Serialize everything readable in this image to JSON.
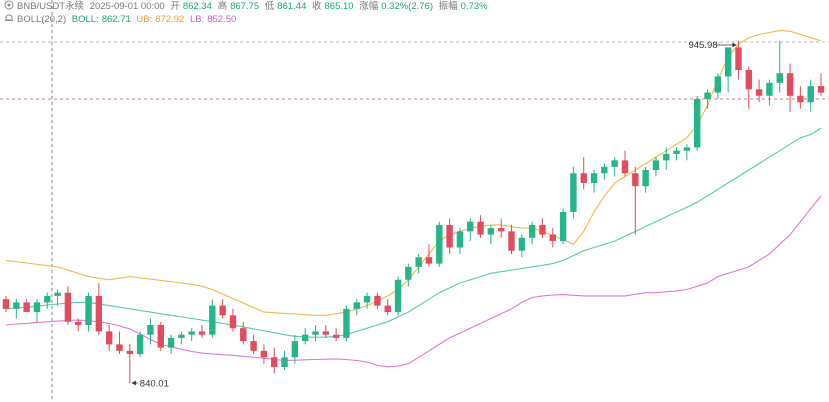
{
  "header": {
    "symbol": "BNB/USDT永续",
    "datetime": "2025-09-01 00:00",
    "open_label": "开",
    "open": "862.34",
    "high_label": "高",
    "high": "867.75",
    "low_label": "低",
    "low": "861.44",
    "close_label": "收",
    "close": "865.10",
    "change_label": "涨幅",
    "change": "0.32%(2.76)",
    "amp_label": "振幅",
    "amp": "0.73%"
  },
  "boll": {
    "label": "BOLL(20,2)",
    "mid_label": "BOLL:",
    "mid": "862.71",
    "ub_label": "UB:",
    "ub": "872.92",
    "lb_label": "LB:",
    "lb": "852.50"
  },
  "colors": {
    "up": "#26b48a",
    "down": "#e34b5f",
    "mid": "#59cfa0",
    "upper": "#f2b94a",
    "lower": "#e27ad2",
    "dash": "#e34b5f"
  },
  "icons": {
    "settings": "eye-icon",
    "boll": "bell-icon"
  },
  "chart_data": {
    "type": "candlestick",
    "ylim": [
      836,
      950
    ],
    "max_label": "945.98",
    "min_label": "840.01",
    "max_value": 945.98,
    "min_value": 840.01,
    "hline": 928.0,
    "candles": [
      [
        866,
        867,
        862,
        863
      ],
      [
        863,
        866,
        860,
        865
      ],
      [
        865,
        866,
        862,
        862
      ],
      [
        862,
        866,
        859,
        865
      ],
      [
        865,
        868,
        863,
        867
      ],
      [
        867,
        869,
        864,
        868
      ],
      [
        868,
        870,
        858,
        859
      ],
      [
        859,
        860,
        856,
        858
      ],
      [
        858,
        868,
        856,
        867
      ],
      [
        867,
        871,
        855,
        856
      ],
      [
        856,
        858,
        850,
        852
      ],
      [
        852,
        856,
        849,
        850
      ],
      [
        850,
        852,
        840,
        849
      ],
      [
        849,
        856,
        848,
        855
      ],
      [
        855,
        860,
        852,
        858
      ],
      [
        858,
        859,
        850,
        851
      ],
      [
        851,
        855,
        849,
        854
      ],
      [
        854,
        856,
        852,
        855
      ],
      [
        855,
        857,
        853,
        856
      ],
      [
        856,
        858,
        854,
        855
      ],
      [
        855,
        866,
        854,
        864
      ],
      [
        864,
        866,
        860,
        861
      ],
      [
        861,
        863,
        856,
        857
      ],
      [
        857,
        859,
        852,
        853
      ],
      [
        853,
        855,
        849,
        850
      ],
      [
        850,
        852,
        846,
        848
      ],
      [
        848,
        851,
        843,
        845
      ],
      [
        845,
        850,
        844,
        848
      ],
      [
        848,
        855,
        846,
        853
      ],
      [
        853,
        857,
        852,
        855
      ],
      [
        855,
        858,
        853,
        856
      ],
      [
        856,
        858,
        854,
        855
      ],
      [
        855,
        857,
        853,
        854
      ],
      [
        854,
        864,
        853,
        863
      ],
      [
        863,
        866,
        861,
        865
      ],
      [
        865,
        868,
        863,
        867
      ],
      [
        867,
        868,
        863,
        864
      ],
      [
        864,
        866,
        861,
        862
      ],
      [
        862,
        873,
        861,
        872
      ],
      [
        872,
        877,
        870,
        876
      ],
      [
        876,
        880,
        874,
        879
      ],
      [
        879,
        883,
        876,
        877
      ],
      [
        877,
        890,
        876,
        889
      ],
      [
        889,
        891,
        880,
        882
      ],
      [
        882,
        888,
        880,
        887
      ],
      [
        887,
        891,
        884,
        890
      ],
      [
        890,
        892,
        885,
        886
      ],
      [
        886,
        889,
        883,
        888
      ],
      [
        888,
        891,
        885,
        887
      ],
      [
        887,
        889,
        880,
        881
      ],
      [
        881,
        886,
        879,
        885
      ],
      [
        885,
        890,
        883,
        889
      ],
      [
        889,
        891,
        885,
        886
      ],
      [
        886,
        888,
        882,
        884
      ],
      [
        884,
        894,
        883,
        893
      ],
      [
        893,
        907,
        891,
        905
      ],
      [
        905,
        910,
        900,
        902
      ],
      [
        902,
        906,
        899,
        905
      ],
      [
        905,
        908,
        903,
        907
      ],
      [
        907,
        910,
        904,
        909
      ],
      [
        909,
        912,
        904,
        905
      ],
      [
        905,
        907,
        886,
        901
      ],
      [
        901,
        907,
        899,
        906
      ],
      [
        906,
        910,
        904,
        909
      ],
      [
        909,
        913,
        906,
        911
      ],
      [
        911,
        913,
        909,
        912
      ],
      [
        912,
        914,
        909,
        913
      ],
      [
        913,
        929,
        912,
        928
      ],
      [
        928,
        931,
        925,
        930
      ],
      [
        930,
        936,
        928,
        935
      ],
      [
        935,
        944,
        930,
        944
      ],
      [
        944,
        946,
        934,
        937
      ],
      [
        937,
        938,
        925,
        931
      ],
      [
        931,
        934,
        927,
        929
      ],
      [
        929,
        934,
        926,
        933
      ],
      [
        933,
        946,
        930,
        936
      ],
      [
        936,
        939,
        924,
        929
      ],
      [
        929,
        932,
        925,
        927
      ],
      [
        927,
        934,
        924,
        932
      ],
      [
        932,
        936,
        929,
        930
      ]
    ],
    "upper": [
      878,
      877.6,
      877.2,
      876.8,
      876.4,
      876,
      875,
      874,
      873,
      872.5,
      872,
      872.5,
      873,
      872.6,
      872.2,
      871.8,
      871.4,
      871,
      870.6,
      870,
      869,
      867.6,
      866.2,
      864.8,
      863.4,
      862,
      861.8,
      861.6,
      861.4,
      861.2,
      861,
      861,
      861.5,
      862,
      863,
      864,
      865.5,
      867,
      869,
      872,
      876,
      880,
      884,
      886,
      887,
      888,
      888.5,
      889,
      889,
      888.4,
      888,
      888,
      887,
      885.7,
      884.4,
      883,
      887,
      893,
      898,
      902,
      904,
      906,
      908,
      910,
      912,
      914,
      916,
      920,
      926,
      934,
      941,
      945,
      947,
      948,
      948.6,
      949.2,
      949,
      948,
      947,
      946
    ],
    "mid": [
      863,
      863.3,
      863.5,
      863.8,
      864.2,
      864.5,
      864.8,
      865,
      865,
      864.5,
      864,
      863.5,
      863,
      862.5,
      862,
      861.5,
      861,
      860.5,
      860,
      859.5,
      859,
      858.5,
      858,
      857.4,
      856.8,
      856.2,
      855.6,
      855,
      854.5,
      854.3,
      854.2,
      854.2,
      854.5,
      855,
      856,
      857,
      858,
      859,
      860.5,
      862,
      864,
      866,
      868,
      869.5,
      871,
      872,
      873,
      874,
      874.5,
      875,
      875.5,
      876,
      876.5,
      877,
      878,
      879.5,
      881,
      882,
      883,
      884,
      885.5,
      887,
      888.5,
      890,
      891.5,
      893,
      894.5,
      896,
      898,
      900,
      902,
      904,
      906,
      908,
      910,
      912,
      914,
      916,
      917,
      919
    ],
    "lower": [
      858,
      858.3,
      858.5,
      858.8,
      859,
      859.2,
      859.4,
      859.5,
      859.3,
      859,
      858.5,
      857.7,
      856.8,
      855.2,
      853.5,
      852,
      851.2,
      850.5,
      849.8,
      849.3,
      849,
      848.8,
      848.6,
      848.3,
      848,
      847.7,
      847.3,
      847,
      847.1,
      847.2,
      847.3,
      847.4,
      847.5,
      847.3,
      847,
      846.5,
      845.5,
      845,
      845.3,
      846,
      848,
      850,
      852,
      854,
      855.5,
      857,
      858.5,
      860,
      861.5,
      863,
      865,
      866.5,
      867,
      867.3,
      867.4,
      867.2,
      867,
      867,
      867,
      867,
      867,
      867.5,
      868,
      868,
      868.3,
      868.5,
      869,
      870,
      871,
      873,
      874,
      875,
      876,
      878,
      880,
      883,
      886,
      890,
      894,
      898
    ]
  }
}
